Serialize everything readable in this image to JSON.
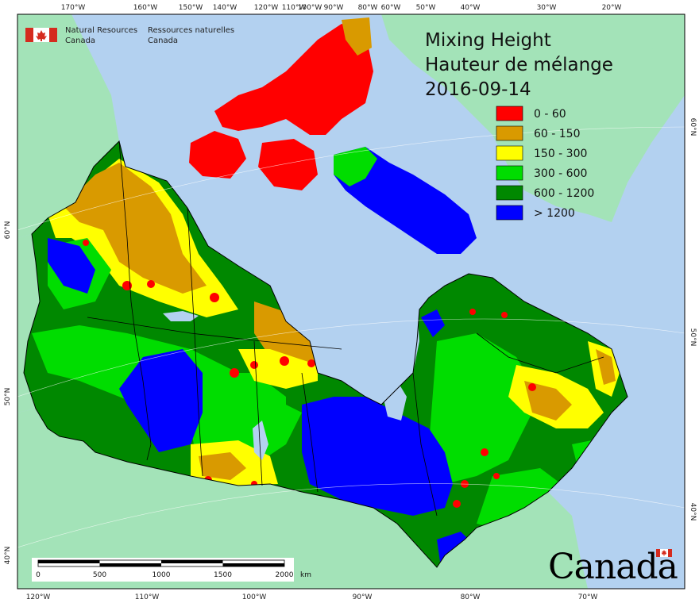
{
  "map": {
    "title": "Mixing Height",
    "title_fr": "Hauteur de mélange",
    "date": "2016-09-14",
    "organization": {
      "name_en_line1": "Natural Resources",
      "name_en_line2": "Canada",
      "name_fr_line1": "Ressources naturelles",
      "name_fr_line2": "Canada"
    },
    "wordmark": "Canada",
    "legend": [
      {
        "label": "0 - 60",
        "color": "#ff0000"
      },
      {
        "label": "60 - 150",
        "color": "#d99a00"
      },
      {
        "label": "150 - 300",
        "color": "#ffff00"
      },
      {
        "label": "300 - 600",
        "color": "#00dd00"
      },
      {
        "label": "600 - 1200",
        "color": "#008800"
      },
      {
        "label": "> 1200",
        "color": "#0000ff"
      }
    ],
    "colors": {
      "ocean": "#b3d1f0",
      "land_outside": "#a3e3b8",
      "border": "#000000"
    },
    "top_labels": [
      "170°W",
      "160°W",
      "150°W",
      "140°W",
      "120°W",
      "110°W",
      "100°W",
      "90°W",
      "80°W",
      "60°W",
      "50°W",
      "40°W",
      "30°W",
      "20°W"
    ],
    "bottom_labels": [
      "120°W",
      "110°W",
      "100°W",
      "90°W",
      "80°W",
      "70°W"
    ],
    "left_labels": [
      "60°N",
      "50°N",
      "40°N"
    ],
    "right_labels": [
      "60°N",
      "50°N",
      "40°N"
    ],
    "scale_bar": {
      "ticks": [
        "0",
        "500",
        "1000",
        "1500",
        "2000"
      ],
      "unit": "km"
    }
  }
}
